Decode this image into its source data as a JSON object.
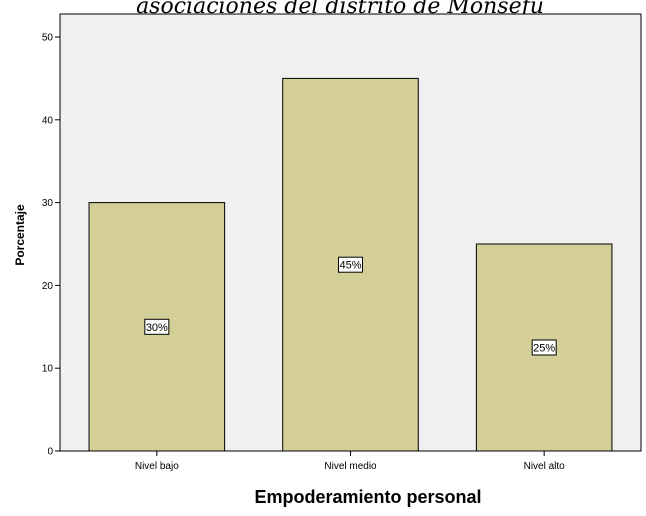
{
  "chart_data": {
    "type": "bar",
    "title": "asociaciones del distrito de Monsefú",
    "categories": [
      "Nivel bajo",
      "Nivel medio",
      "Nivel alto"
    ],
    "values": [
      30,
      45,
      25
    ],
    "data_labels": [
      "30%",
      "45%",
      "25%"
    ],
    "xlabel": "Empoderamiento personal",
    "ylabel": "Porcentaje",
    "ylim": [
      0,
      52
    ],
    "yticks": [
      0,
      10,
      20,
      30,
      40,
      50
    ],
    "grid": false,
    "legend": "none",
    "colors": {
      "plot_background": "#f0f0f0",
      "bar_fill": "#d4cf96",
      "bar_stroke": "#000000",
      "label_box_fill": "#ffffff"
    }
  }
}
